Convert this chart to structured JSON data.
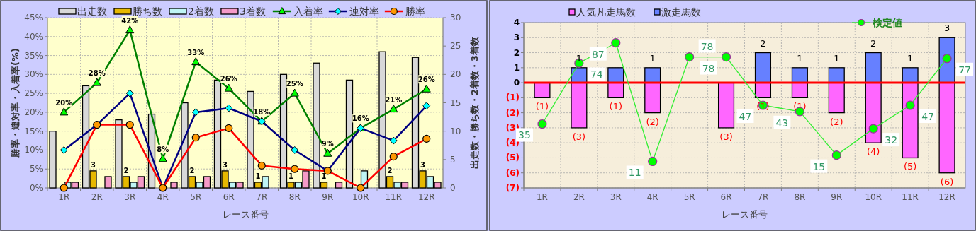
{
  "chart_data": [
    {
      "type": "bar",
      "categories": [
        "1R",
        "2R",
        "3R",
        "4R",
        "5R",
        "6R",
        "7R",
        "8R",
        "9R",
        "10R",
        "11R",
        "12R"
      ],
      "xlabel": "レース番号",
      "ylabel": "勝率・連対率・入着率(%)",
      "y2label": "出走数・勝ち数・2着数・3着数",
      "ylim": [
        0,
        45
      ],
      "yticks": [
        {
          "value": 0,
          "label": "0%"
        },
        {
          "value": 5,
          "label": "5%"
        },
        {
          "value": 10,
          "label": "10%"
        },
        {
          "value": 15,
          "label": "15%"
        },
        {
          "value": 20,
          "label": "20%"
        },
        {
          "value": 25,
          "label": "25%"
        },
        {
          "value": 30,
          "label": "30%"
        },
        {
          "value": 35,
          "label": "35%"
        },
        {
          "value": 40,
          "label": "40%"
        },
        {
          "value": 45,
          "label": "45%"
        }
      ],
      "y2lim": [
        0,
        30
      ],
      "y2ticks": [
        0,
        5,
        10,
        15,
        20,
        25,
        30
      ],
      "grid": true,
      "legend": "top",
      "series": [
        {
          "name": "出走数",
          "axis": "y2",
          "color": "#d8d8d8",
          "values": [
            10,
            18,
            12,
            13,
            15,
            19,
            17,
            20,
            22,
            19,
            24,
            23
          ]
        },
        {
          "name": "勝ち数",
          "axis": "y2",
          "color": "#e6b800",
          "values": [
            0,
            3,
            2,
            0,
            2,
            3,
            1,
            1,
            1,
            0,
            2,
            3
          ],
          "value_labels": [
            null,
            "3",
            "2",
            null,
            "2",
            "3",
            "1",
            "1",
            "1",
            null,
            "2",
            "3"
          ]
        },
        {
          "name": "2着数",
          "axis": "y2",
          "color": "#bff5f5",
          "values": [
            1,
            0,
            1,
            0,
            1,
            1,
            2,
            1,
            0,
            3,
            1,
            2
          ]
        },
        {
          "name": "3着数",
          "axis": "y2",
          "color": "#f59ac8",
          "values": [
            1,
            2,
            2,
            1,
            2,
            1,
            0,
            3,
            1,
            0,
            1,
            1
          ]
        },
        {
          "name": "入着率",
          "type": "line",
          "axis": "y",
          "color": "#008000",
          "marker": "triangle",
          "values": [
            20.0,
            27.8,
            41.7,
            7.7,
            33.3,
            26.3,
            17.6,
            25.0,
            9.1,
            15.8,
            20.8,
            26.1
          ],
          "value_labels": [
            "20%",
            "28%",
            "42%",
            "8%",
            "33%",
            "26%",
            "18%",
            "25%",
            "9%",
            "16%",
            "21%",
            "26%"
          ]
        },
        {
          "name": "連対率",
          "type": "line",
          "axis": "y",
          "color": "#000080",
          "marker": "diamond",
          "values": [
            10.0,
            16.7,
            25.0,
            0,
            20.0,
            21.1,
            17.6,
            10.0,
            4.5,
            15.8,
            12.5,
            21.7
          ]
        },
        {
          "name": "勝率",
          "type": "line",
          "axis": "y",
          "color": "#ff0000",
          "marker": "circle",
          "values": [
            0,
            16.7,
            16.7,
            0,
            13.3,
            15.8,
            5.9,
            5.0,
            4.5,
            0,
            8.3,
            13.0
          ]
        }
      ]
    },
    {
      "type": "bar",
      "stacked": true,
      "categories": [
        "1R",
        "2R",
        "3R",
        "4R",
        "5R",
        "6R",
        "7R",
        "8R",
        "9R",
        "10R",
        "11R",
        "12R"
      ],
      "xlabel": "レース番号",
      "ylim": [
        -7,
        4
      ],
      "yticks": [
        4,
        3,
        2,
        1,
        0,
        {
          "value": -1,
          "label": "(1)"
        },
        {
          "value": -2,
          "label": "(2)"
        },
        {
          "value": -3,
          "label": "(3)"
        },
        {
          "value": -4,
          "label": "(4)"
        },
        {
          "value": -5,
          "label": "(5)"
        },
        {
          "value": -6,
          "label": "(6)"
        },
        {
          "value": -7,
          "label": "(7)"
        }
      ],
      "y2lim": [
        -6,
        100
      ],
      "grid": true,
      "legend": "top",
      "ref_lines": [
        {
          "axis": "y",
          "value": 0,
          "color": "#ff0000"
        }
      ],
      "series": [
        {
          "name": "人気凡走馬数",
          "color": "#ff66ff",
          "values": [
            -1,
            -3,
            -1,
            -2,
            0,
            -3,
            -1,
            -1,
            -2,
            -4,
            -5,
            -6
          ],
          "value_labels": [
            "(1)",
            "(3)",
            "(1)",
            "(2)",
            null,
            "(3)",
            "(1)",
            "(1)",
            "(2)",
            "(4)",
            "(5)",
            "(6)"
          ]
        },
        {
          "name": "激走馬数",
          "color": "#6680ff",
          "values": [
            0,
            1,
            1,
            1,
            0,
            0,
            2,
            1,
            1,
            2,
            1,
            3
          ],
          "value_labels": [
            null,
            "1",
            null,
            "1",
            null,
            null,
            "2",
            "1",
            "1",
            "2",
            "1",
            "3"
          ]
        },
        {
          "name": "検定値",
          "type": "line",
          "axis": "y2",
          "color": "#33ee33",
          "marker": "circle",
          "values": [
            35,
            74,
            87,
            11,
            78,
            78,
            47,
            43,
            15,
            32,
            47,
            77
          ],
          "value_labels": [
            "35",
            "74",
            "87",
            "11",
            "78",
            "78",
            "47",
            "43",
            "15",
            "32",
            "47",
            "77"
          ]
        }
      ]
    }
  ]
}
